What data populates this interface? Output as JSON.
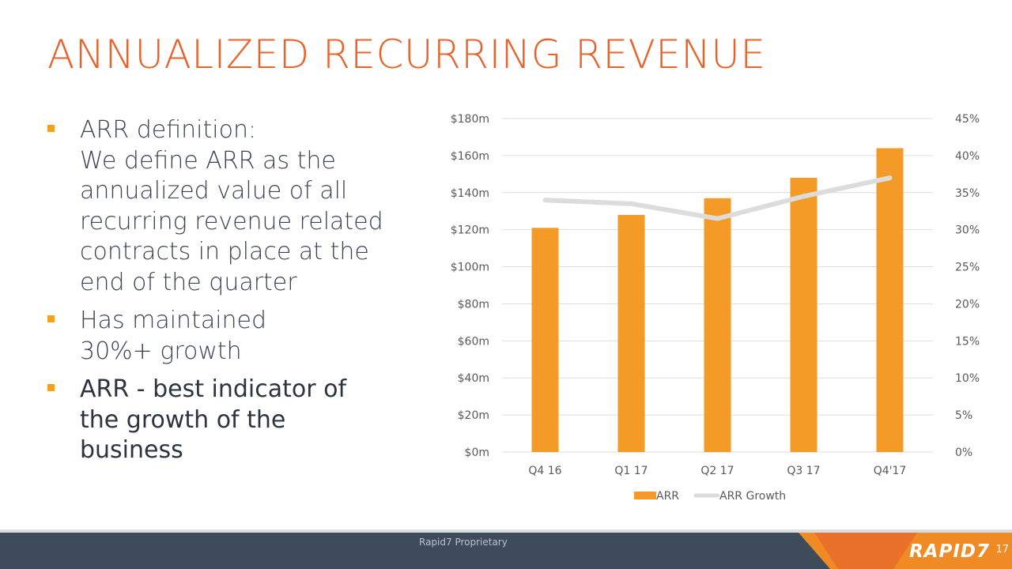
{
  "slide": {
    "title": "ANNUALIZED RECURRING REVENUE",
    "bullets": [
      {
        "text": "ARR definition:\nWe define ARR as the\nannualized value of all\nrecurring revenue related\ncontracts in place at the\nend of the quarter"
      },
      {
        "text": "Has maintained\n30%+ growth"
      },
      {
        "text": "ARR - best indicator of\nthe growth of the\nbusiness"
      }
    ],
    "footer": {
      "proprietary": "Rapid7 Proprietary",
      "logo": "RAPID7",
      "page_number": "17"
    },
    "colors": {
      "title": "#e8622b",
      "bar": "#f39b26",
      "line": "#dcdcdc",
      "footer_bg": "#3d4b5a"
    }
  },
  "chart_data": {
    "type": "bar",
    "categories": [
      "Q4 16",
      "Q1 17",
      "Q2 17",
      "Q3 17",
      "Q4'17"
    ],
    "series": [
      {
        "name": "ARR",
        "type": "bar",
        "axis": "left",
        "values": [
          121,
          128,
          137,
          148,
          164
        ]
      },
      {
        "name": "ARR Growth",
        "type": "line",
        "axis": "right",
        "values": [
          34,
          33.5,
          31.5,
          34.5,
          37
        ]
      }
    ],
    "left_axis": {
      "ticks": [
        "$0m",
        "$20m",
        "$40m",
        "$60m",
        "$80m",
        "$100m",
        "$120m",
        "$140m",
        "$160m",
        "$180m"
      ],
      "range": [
        0,
        180
      ]
    },
    "right_axis": {
      "ticks": [
        "0%",
        "5%",
        "10%",
        "15%",
        "20%",
        "25%",
        "30%",
        "35%",
        "40%",
        "45%"
      ],
      "range": [
        0,
        45
      ]
    },
    "grid": true,
    "legend": "bottom"
  }
}
